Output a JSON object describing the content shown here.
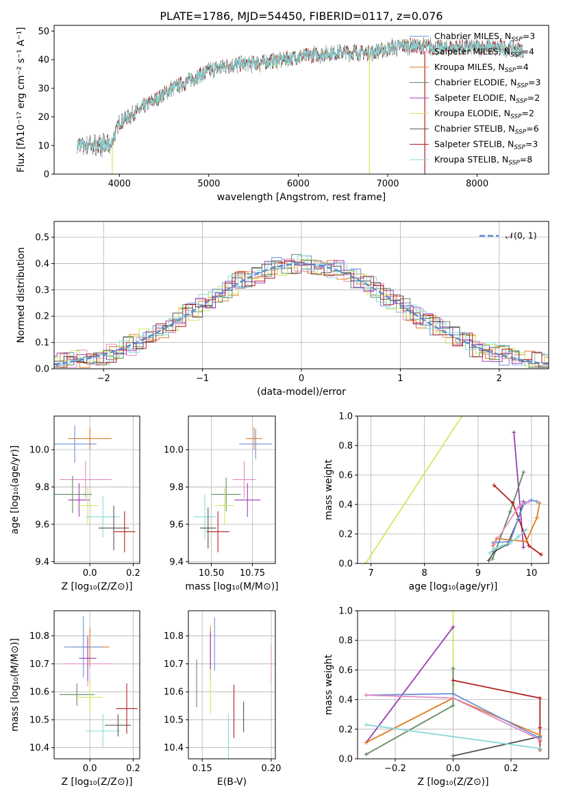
{
  "figure": {
    "title": "PLATE=1786, MJD=54450, FIBERID=0117, z=0.076"
  },
  "colors": {
    "Chabrier MILES": "#6a8fd8",
    "Salpeter MILES": "#e48cc4",
    "Kroupa MILES": "#e07b22",
    "Chabrier ELODIE": "#5f8a62",
    "Salpeter ELODIE": "#9a3db3",
    "Kroupa ELODIE": "#cdea5a",
    "Chabrier STELIB": "#505050",
    "Salpeter STELIB": "#b01c1c",
    "Kroupa STELIB": "#86d8d8"
  },
  "chart_data": [
    {
      "id": "spectrum",
      "type": "line",
      "title": "PLATE=1786, MJD=54450, FIBERID=0117, z=0.076",
      "xlabel": "wavelength [Angstrom, rest frame]",
      "ylabel": "Flux [fλ10⁻¹⁷ erg cm⁻² s⁻¹ A⁻¹]",
      "xlim": [
        3270,
        8800
      ],
      "ylim": [
        0,
        52
      ],
      "xticks": [
        4000,
        5000,
        6000,
        7000,
        8000
      ],
      "yticks": [
        0,
        10,
        20,
        30,
        40,
        50
      ],
      "grid": false,
      "legend_position": "top-right",
      "legend": [
        {
          "base": "Chabrier MILES, N",
          "nssp": 3
        },
        {
          "base": "Salpeter MILES, N",
          "nssp": 4
        },
        {
          "base": "Kroupa MILES, N",
          "nssp": 4
        },
        {
          "base": "Chabrier ELODIE, N",
          "nssp": 3
        },
        {
          "base": "Salpeter ELODIE, N",
          "nssp": 2
        },
        {
          "base": "Kroupa ELODIE, N",
          "nssp": 2
        },
        {
          "base": "Chabrier STELIB, N",
          "nssp": 6
        },
        {
          "base": "Salpeter STELIB, N",
          "nssp": 3
        },
        {
          "base": "Kroupa STELIB, N",
          "nssp": 8
        }
      ],
      "continuum": {
        "x": [
          3530,
          3700,
          3900,
          4000,
          4300,
          4600,
          5000,
          5200,
          5600,
          6000,
          6400,
          6800,
          7200,
          7600,
          8000,
          8400,
          8520
        ],
        "y": [
          10,
          10,
          10,
          18,
          24,
          30,
          36,
          38,
          39,
          41,
          42.5,
          42.5,
          45,
          44,
          44.5,
          44,
          43
        ]
      }
    },
    {
      "id": "residuals",
      "type": "line",
      "xlabel": "(data-model)/error",
      "ylabel": "Normed distribution",
      "xlim": [
        -2.5,
        2.5
      ],
      "ylim": [
        0,
        0.56
      ],
      "xticks": [
        -2,
        -1,
        0,
        1,
        2
      ],
      "yticks": [
        0.0,
        0.1,
        0.2,
        0.3,
        0.4,
        0.5
      ],
      "grid": true,
      "legend_position": "top-right",
      "reference_curve": "N(0,1)",
      "legend_text": "𝒩(0, 1)"
    },
    {
      "id": "age-vs-Z",
      "type": "scatter",
      "xlabel": "Z [log₁₀(Z/Z⊙)]",
      "ylabel": "age  [log₁₀(age/yr)]",
      "xlim": [
        -0.165,
        0.23
      ],
      "ylim": [
        9.39,
        10.18
      ],
      "xticks": [
        -0.0,
        0.2
      ],
      "xticklabels": [
        "0.0",
        "0.2"
      ],
      "yticks": [
        9.4,
        9.6,
        9.8,
        10.0
      ],
      "grid": true,
      "points": [
        {
          "series": "Kroupa MILES",
          "x": 0.0,
          "y": 10.06,
          "xerr": 0.1,
          "yerr": 0.06
        },
        {
          "series": "Chabrier MILES",
          "x": -0.07,
          "y": 10.03,
          "xerr": 0.1,
          "yerr": 0.1
        },
        {
          "series": "Salpeter MILES",
          "x": -0.02,
          "y": 9.84,
          "xerr": 0.12,
          "yerr": 0.1
        },
        {
          "series": "Salpeter ELODIE",
          "x": -0.05,
          "y": 9.73,
          "xerr": 0.05,
          "yerr": 0.09
        },
        {
          "series": "Chabrier ELODIE",
          "x": -0.08,
          "y": 9.76,
          "xerr": 0.09,
          "yerr": 0.1
        },
        {
          "series": "Kroupa ELODIE",
          "x": -0.01,
          "y": 9.7,
          "xerr": 0.05,
          "yerr": 0.1
        },
        {
          "series": "Kroupa STELIB",
          "x": 0.06,
          "y": 9.64,
          "xerr": 0.08,
          "yerr": 0.11
        },
        {
          "series": "Chabrier STELIB",
          "x": 0.11,
          "y": 9.58,
          "xerr": 0.07,
          "yerr": 0.12
        },
        {
          "series": "Salpeter STELIB",
          "x": 0.16,
          "y": 9.56,
          "xerr": 0.05,
          "yerr": 0.11
        }
      ]
    },
    {
      "id": "age-vs-mass",
      "type": "scatter",
      "xlabel": "mass [log₁₀(M/M⊙)]",
      "xlim": [
        10.36,
        10.89
      ],
      "ylim": [
        9.39,
        10.18
      ],
      "xticks": [
        10.5,
        10.75
      ],
      "xticklabels": [
        "10.50",
        "10.75"
      ],
      "yticks": [
        9.4,
        9.6,
        9.8,
        10.0
      ],
      "grid": true,
      "points": [
        {
          "series": "Kroupa MILES",
          "x": 10.76,
          "y": 10.06,
          "xerr": 0.05,
          "yerr": 0.06
        },
        {
          "series": "Chabrier MILES",
          "x": 10.77,
          "y": 10.03,
          "xerr": 0.1,
          "yerr": 0.08
        },
        {
          "series": "Salpeter MILES",
          "x": 10.7,
          "y": 9.84,
          "xerr": 0.07,
          "yerr": 0.1
        },
        {
          "series": "Salpeter ELODIE",
          "x": 10.72,
          "y": 9.73,
          "xerr": 0.08,
          "yerr": 0.09
        },
        {
          "series": "Chabrier ELODIE",
          "x": 10.59,
          "y": 9.76,
          "xerr": 0.09,
          "yerr": 0.09
        },
        {
          "series": "Kroupa ELODIE",
          "x": 10.58,
          "y": 9.7,
          "xerr": 0.06,
          "yerr": 0.1
        },
        {
          "series": "Kroupa STELIB",
          "x": 10.46,
          "y": 9.64,
          "xerr": 0.07,
          "yerr": 0.12
        },
        {
          "series": "Chabrier STELIB",
          "x": 10.48,
          "y": 9.58,
          "xerr": 0.05,
          "yerr": 0.11
        },
        {
          "series": "Salpeter STELIB",
          "x": 10.54,
          "y": 9.56,
          "xerr": 0.07,
          "yerr": 0.11
        }
      ]
    },
    {
      "id": "weight-vs-age",
      "type": "line",
      "xlabel": "age  [log₁₀(age/yr)]",
      "ylabel": "mass weight",
      "xlim": [
        6.75,
        10.32
      ],
      "ylim": [
        0,
        1
      ],
      "xticks": [
        7,
        8,
        9,
        10
      ],
      "yticks": [
        0.0,
        0.2,
        0.4,
        0.6,
        0.8,
        1.0
      ],
      "grid": true,
      "series": [
        {
          "name": "Kroupa ELODIE",
          "points": [
            [
              6.9,
              0.0
            ],
            [
              8.7,
              1.0
            ]
          ]
        },
        {
          "name": "Salpeter ELODIE",
          "points": [
            [
              9.85,
              0.11
            ],
            [
              9.67,
              0.89
            ]
          ]
        },
        {
          "name": "Chabrier ELODIE",
          "points": [
            [
              9.27,
              0.03
            ],
            [
              9.6,
              0.35
            ],
            [
              9.85,
              0.62
            ]
          ]
        },
        {
          "name": "Salpeter STELIB",
          "points": [
            [
              9.3,
              0.53
            ],
            [
              9.65,
              0.41
            ],
            [
              9.95,
              0.12
            ],
            [
              10.18,
              0.06
            ]
          ]
        },
        {
          "name": "Chabrier STELIB",
          "points": [
            [
              9.2,
              0.02
            ],
            [
              9.3,
              0.08
            ],
            [
              9.55,
              0.13
            ],
            [
              9.75,
              0.3
            ],
            [
              9.85,
              0.42
            ]
          ]
        },
        {
          "name": "Kroupa MILES",
          "points": [
            [
              9.28,
              0.12
            ],
            [
              9.35,
              0.17
            ],
            [
              9.6,
              0.16
            ],
            [
              9.9,
              0.15
            ],
            [
              10.1,
              0.31
            ],
            [
              10.15,
              0.41
            ]
          ]
        },
        {
          "name": "Chabrier MILES",
          "points": [
            [
              9.28,
              0.14
            ],
            [
              9.6,
              0.15
            ],
            [
              9.85,
              0.4
            ],
            [
              10.0,
              0.43
            ],
            [
              10.1,
              0.42
            ]
          ]
        },
        {
          "name": "Salpeter MILES",
          "points": [
            [
              9.3,
              0.13
            ],
            [
              9.75,
              0.38
            ],
            [
              9.85,
              0.41
            ],
            [
              9.95,
              0.42
            ]
          ]
        },
        {
          "name": "Kroupa STELIB",
          "points": [
            [
              9.22,
              0.07
            ],
            [
              9.3,
              0.1
            ],
            [
              9.45,
              0.12
            ],
            [
              9.6,
              0.14
            ],
            [
              9.75,
              0.18
            ],
            [
              9.9,
              0.23
            ]
          ]
        }
      ]
    },
    {
      "id": "mass-vs-Z",
      "type": "scatter",
      "xlabel": "Z [log₁₀(Z/Z⊙)]",
      "ylabel": "mass [log₁₀(M/M⊙)]",
      "xlim": [
        -0.165,
        0.23
      ],
      "ylim": [
        10.36,
        10.89
      ],
      "xticks": [
        -0.0,
        0.2
      ],
      "xticklabels": [
        "0.0",
        "0.2"
      ],
      "yticks": [
        10.4,
        10.5,
        10.6,
        10.7,
        10.8
      ],
      "grid": true,
      "points": [
        {
          "series": "Kroupa MILES",
          "x": 0.0,
          "y": 10.76,
          "xerr": 0.09,
          "yerr": 0.07
        },
        {
          "series": "Chabrier MILES",
          "x": -0.03,
          "y": 10.76,
          "xerr": 0.09,
          "yerr": 0.11
        },
        {
          "series": "Salpeter MILES",
          "x": -0.01,
          "y": 10.7,
          "xerr": 0.11,
          "yerr": 0.08
        },
        {
          "series": "Salpeter ELODIE",
          "x": -0.01,
          "y": 10.72,
          "xerr": 0.04,
          "yerr": 0.08
        },
        {
          "series": "Chabrier ELODIE",
          "x": -0.06,
          "y": 10.59,
          "xerr": 0.08,
          "yerr": 0.04
        },
        {
          "series": "Kroupa ELODIE",
          "x": 0.0,
          "y": 10.58,
          "xerr": 0.06,
          "yerr": 0.06
        },
        {
          "series": "Kroupa STELIB",
          "x": 0.06,
          "y": 10.46,
          "xerr": 0.08,
          "yerr": 0.06
        },
        {
          "series": "Chabrier STELIB",
          "x": 0.13,
          "y": 10.48,
          "xerr": 0.06,
          "yerr": 0.04
        },
        {
          "series": "Salpeter STELIB",
          "x": 0.17,
          "y": 10.54,
          "xerr": 0.05,
          "yerr": 0.09
        }
      ]
    },
    {
      "id": "mass-vs-ebv",
      "type": "scatter",
      "xlabel": "E(B-V)",
      "xlim": [
        0.14,
        0.203
      ],
      "ylim": [
        10.36,
        10.89
      ],
      "xticks": [
        0.15,
        0.2
      ],
      "xticklabels": [
        "0.15",
        "0.20"
      ],
      "yticks": [
        10.4,
        10.5,
        10.6,
        10.7,
        10.8
      ],
      "grid": true,
      "points": [
        {
          "series": "Chabrier ELODIE",
          "x": 0.146,
          "y": 10.63,
          "yerr": 0.085
        },
        {
          "series": "Kroupa MILES",
          "x": 0.156,
          "y": 10.76,
          "yerr": 0.075
        },
        {
          "series": "Salpeter ELODIE",
          "x": 0.156,
          "y": 10.73,
          "yerr": 0.085
        },
        {
          "series": "Kroupa ELODIE",
          "x": 0.156,
          "y": 10.6,
          "yerr": 0.08
        },
        {
          "series": "Chabrier MILES",
          "x": 0.159,
          "y": 10.77,
          "yerr": 0.095
        },
        {
          "series": "Kroupa STELIB",
          "x": 0.169,
          "y": 10.42,
          "yerr": 0.1
        },
        {
          "series": "Salpeter STELIB",
          "x": 0.173,
          "y": 10.53,
          "yerr": 0.095
        },
        {
          "series": "Chabrier STELIB",
          "x": 0.18,
          "y": 10.51,
          "yerr": 0.055
        },
        {
          "series": "Salpeter MILES",
          "x": 0.2,
          "y": 10.7,
          "yerr": 0.065
        }
      ]
    },
    {
      "id": "weight-vs-Z",
      "type": "line",
      "xlabel": "Z [log₁₀(Z/Z⊙)]",
      "ylabel": "mass weight",
      "xlim": [
        -0.33,
        0.33
      ],
      "ylim": [
        0,
        1
      ],
      "xticks": [
        -0.2,
        0.0,
        0.2
      ],
      "xticklabels": [
        "−0.2",
        "0.0",
        "0.2"
      ],
      "yticks": [
        0.0,
        0.2,
        0.4,
        0.6,
        0.8,
        1.0
      ],
      "grid": true,
      "series": [
        {
          "name": "Kroupa ELODIE",
          "points": [
            [
              0.0,
              0.5
            ],
            [
              0.0,
              1.0
            ]
          ]
        },
        {
          "name": "Salpeter ELODIE",
          "points": [
            [
              -0.3,
              0.11
            ],
            [
              0.0,
              0.89
            ]
          ]
        },
        {
          "name": "Chabrier ELODIE",
          "points": [
            [
              -0.3,
              0.03
            ],
            [
              0.0,
              0.36
            ],
            [
              0.0,
              0.61
            ]
          ]
        },
        {
          "name": "Salpeter STELIB",
          "points": [
            [
              0.0,
              0.53
            ],
            [
              0.3,
              0.41
            ],
            [
              0.3,
              0.21
            ],
            [
              0.3,
              0.12
            ],
            [
              0.3,
              0.06
            ]
          ]
        },
        {
          "name": "Chabrier STELIB",
          "points": [
            [
              0.0,
              0.02
            ],
            [
              0.3,
              0.15
            ]
          ]
        },
        {
          "name": "Kroupa MILES",
          "points": [
            [
              -0.3,
              0.11
            ],
            [
              0.0,
              0.41
            ],
            [
              0.3,
              0.16
            ]
          ]
        },
        {
          "name": "Chabrier MILES",
          "points": [
            [
              -0.3,
              0.43
            ],
            [
              0.0,
              0.44
            ],
            [
              0.3,
              0.14
            ]
          ]
        },
        {
          "name": "Salpeter MILES",
          "points": [
            [
              -0.3,
              0.43
            ],
            [
              0.0,
              0.41
            ],
            [
              0.3,
              0.13
            ]
          ]
        },
        {
          "name": "Kroupa STELIB",
          "points": [
            [
              -0.3,
              0.23
            ],
            [
              0.0,
              0.15
            ],
            [
              0.3,
              0.07
            ]
          ]
        }
      ]
    }
  ]
}
